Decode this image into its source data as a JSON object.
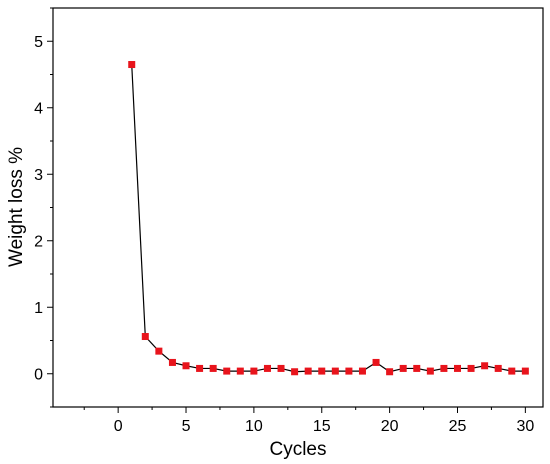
{
  "chart_data": {
    "type": "line",
    "title": "",
    "xlabel": "Cycles",
    "ylabel": "Weight loss %",
    "xlim": [
      -4.8,
      31.3
    ],
    "ylim": [
      -0.5,
      5.5
    ],
    "xticks": [
      0,
      5,
      10,
      15,
      20,
      25,
      30
    ],
    "yticks": [
      0,
      1,
      2,
      3,
      4,
      5
    ],
    "grid": false,
    "legend": "none",
    "line_color": "#000000",
    "marker_color": "#e8141c",
    "marker": "square",
    "series": [
      {
        "x": [
          1,
          2,
          3,
          4,
          5,
          6,
          7,
          8,
          9,
          10,
          11,
          12,
          13,
          14,
          15,
          16,
          17,
          18,
          19,
          20,
          21,
          22,
          23,
          24,
          25,
          26,
          27,
          28,
          29,
          30
        ],
        "values": [
          4.65,
          0.56,
          0.34,
          0.17,
          0.12,
          0.08,
          0.08,
          0.04,
          0.04,
          0.04,
          0.08,
          0.08,
          0.03,
          0.04,
          0.04,
          0.04,
          0.04,
          0.04,
          0.17,
          0.03,
          0.08,
          0.08,
          0.04,
          0.08,
          0.08,
          0.08,
          0.12,
          0.08,
          0.04,
          0.04
        ]
      }
    ]
  }
}
